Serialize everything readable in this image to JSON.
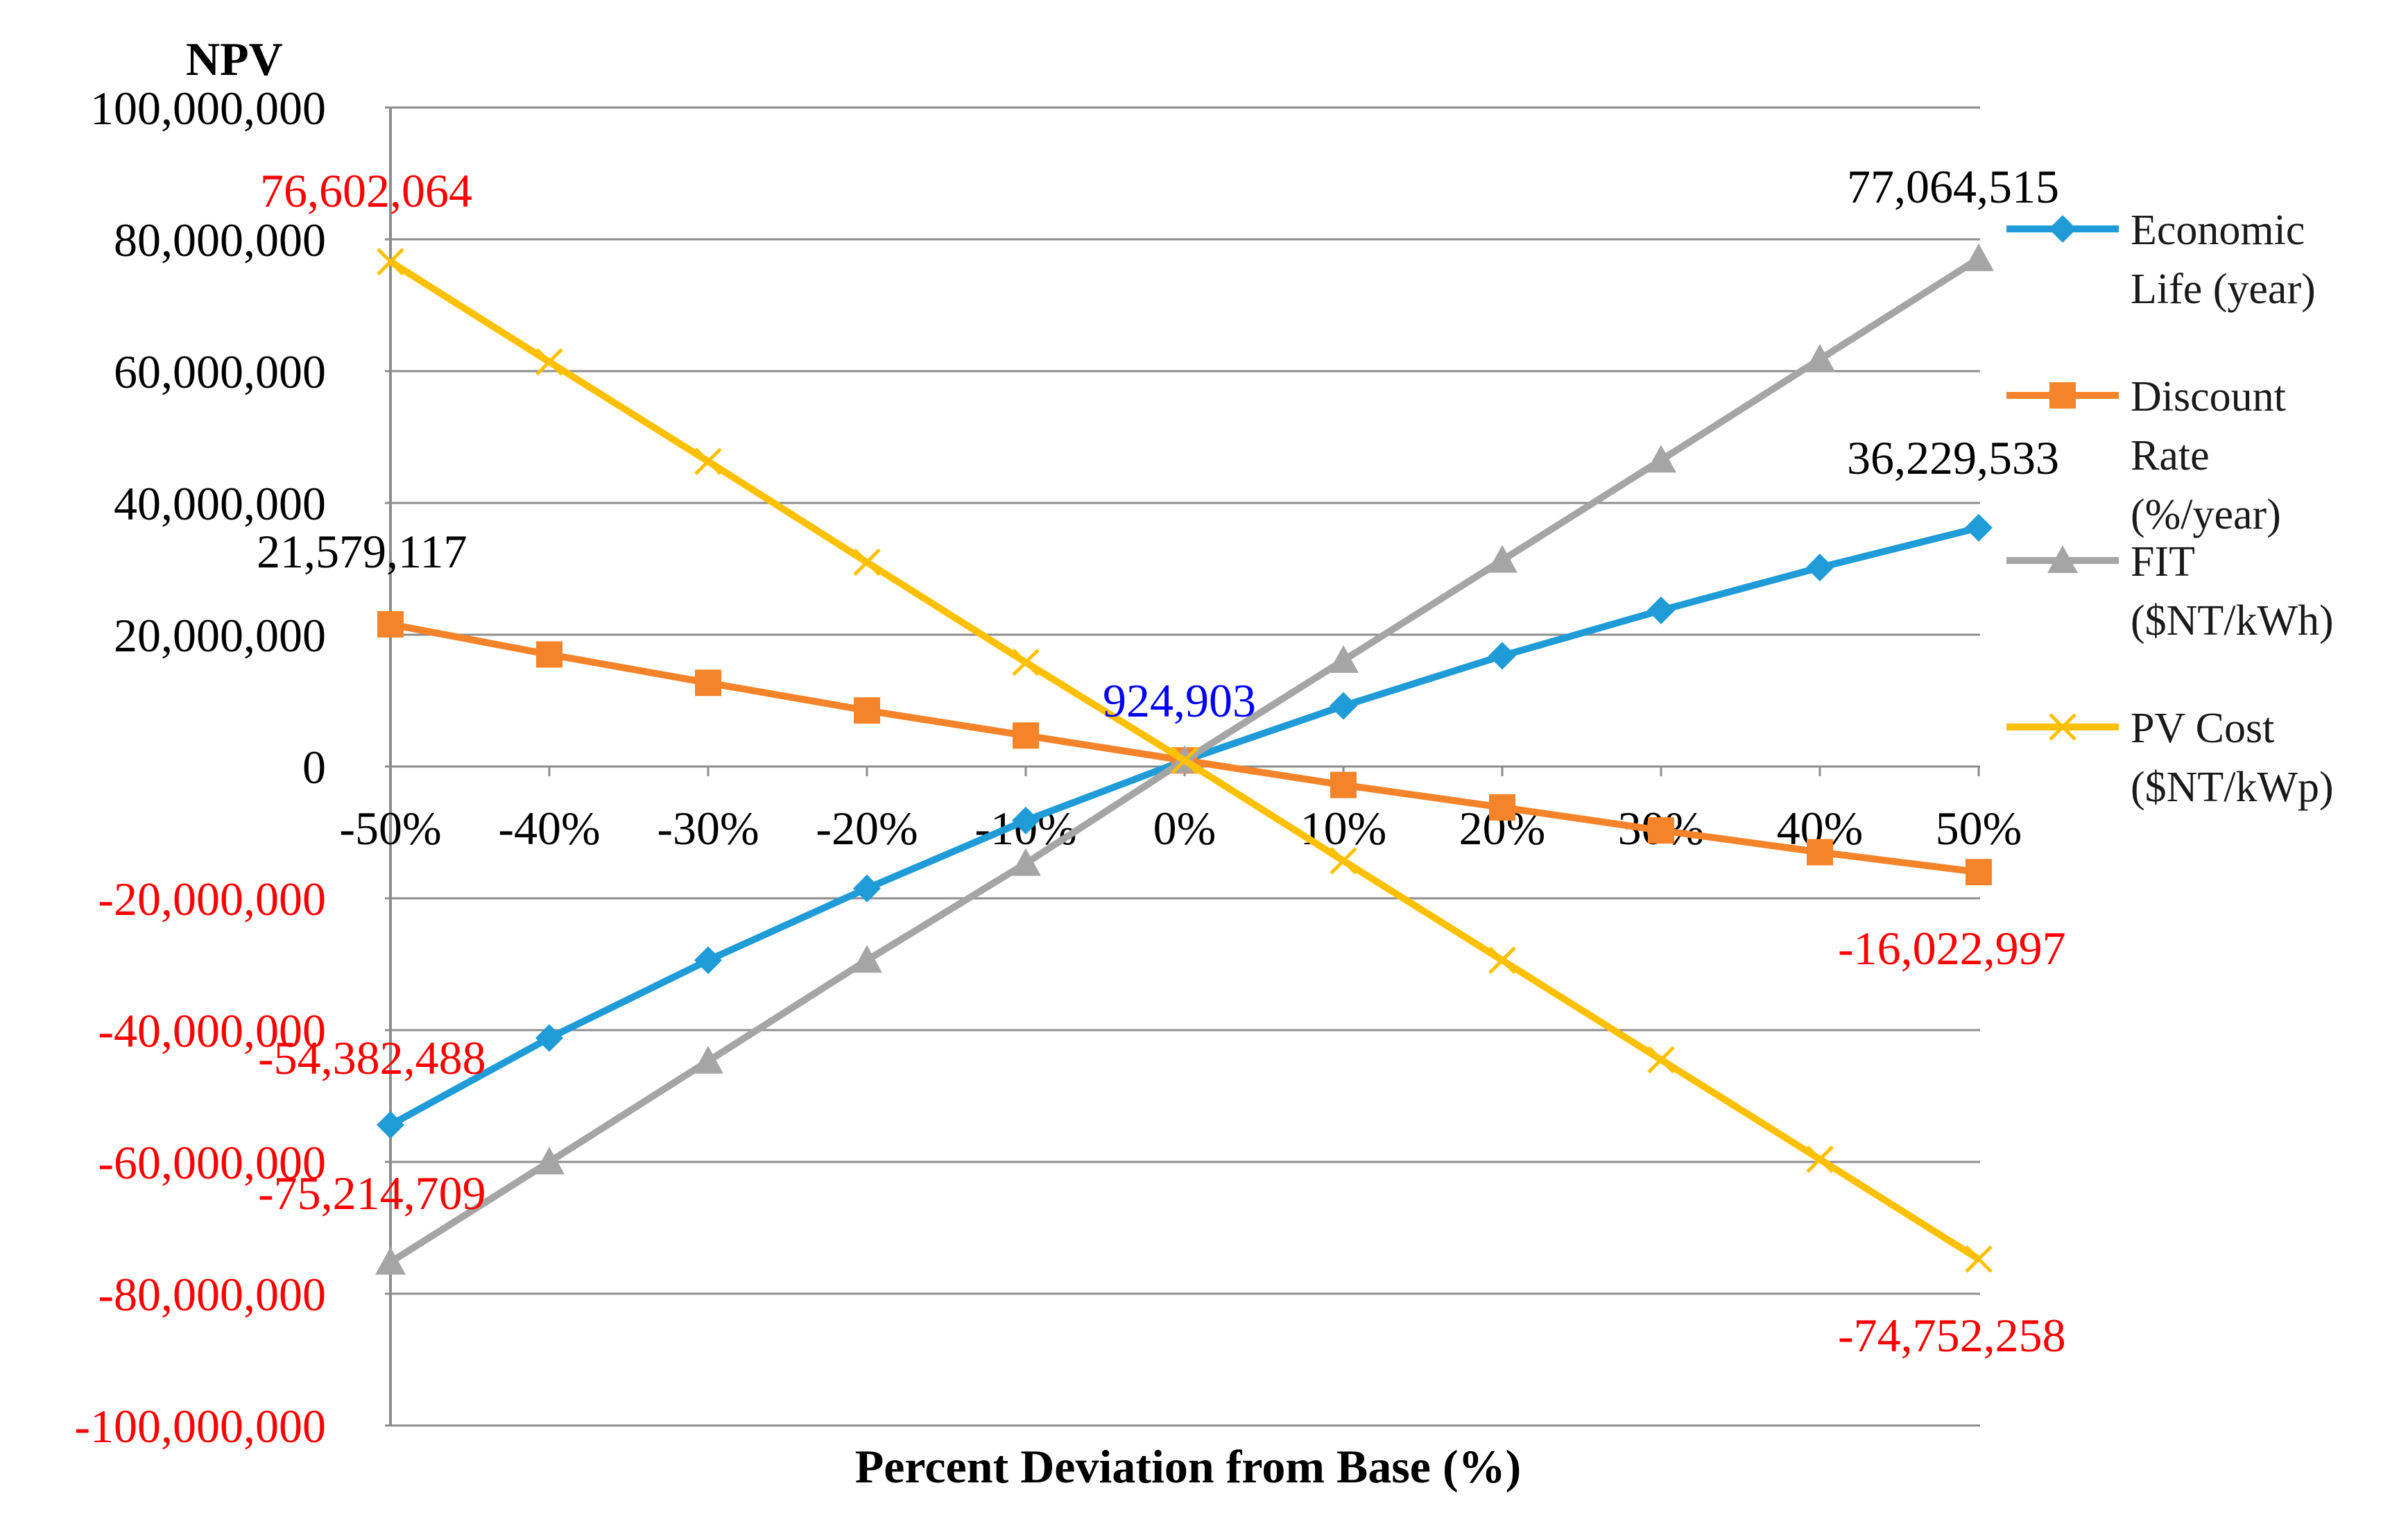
{
  "chart_data": {
    "type": "line",
    "title": "",
    "xlabel": "Percent Deviation from Base (%)",
    "ylabel": "NPV",
    "categories": [
      "-50%",
      "-40%",
      "-30%",
      "-20%",
      "-10%",
      "0%",
      "10%",
      "20%",
      "30%",
      "40%",
      "50%"
    ],
    "y_ticks": [
      {
        "value": 100000000,
        "label": "100,000,000",
        "color": "#000000"
      },
      {
        "value": 80000000,
        "label": "80,000,000",
        "color": "#000000"
      },
      {
        "value": 60000000,
        "label": "60,000,000",
        "color": "#000000"
      },
      {
        "value": 40000000,
        "label": "40,000,000",
        "color": "#000000"
      },
      {
        "value": 20000000,
        "label": "20,000,000",
        "color": "#000000"
      },
      {
        "value": 0,
        "label": "0",
        "color": "#000000"
      },
      {
        "value": -20000000,
        "label": "-20,000,000",
        "color": "#ff0000"
      },
      {
        "value": -40000000,
        "label": "-40,000,000",
        "color": "#ff0000"
      },
      {
        "value": -60000000,
        "label": "-60,000,000",
        "color": "#ff0000"
      },
      {
        "value": -80000000,
        "label": "-80,000,000",
        "color": "#ff0000"
      },
      {
        "value": -100000000,
        "label": "-100,000,000",
        "color": "#ff0000"
      }
    ],
    "ylim": [
      -100000000,
      100000000
    ],
    "grid": true,
    "legend_position": "right",
    "series": [
      {
        "name": "Economic Life (year)",
        "legend_lines": [
          "Economic",
          "Life (year)"
        ],
        "color": "#1f9bd7",
        "marker": "diamond",
        "values": [
          -54382488,
          -41200000,
          -29400000,
          -18500000,
          -8200000,
          924903,
          9200000,
          16800000,
          23700000,
          30200000,
          36229533
        ]
      },
      {
        "name": "Discount Rate (%/year)",
        "legend_lines": [
          "Discount",
          "Rate",
          "(%/year)"
        ],
        "color": "#f5832a",
        "marker": "square",
        "values": [
          21579117,
          17000000,
          12700000,
          8500000,
          4700000,
          924903,
          -2800000,
          -6200000,
          -9700000,
          -13000000,
          -16022997
        ]
      },
      {
        "name": "FIT ($NT/kWh)",
        "legend_lines": [
          "FIT",
          "($NT/kWh)"
        ],
        "color": "#a5a5a5",
        "marker": "triangle",
        "values": [
          -75214709,
          -60000000,
          -44700000,
          -29400000,
          -14700000,
          924903,
          16100000,
          31300000,
          46500000,
          61800000,
          77064515
        ]
      },
      {
        "name": "PV Cost ($NT/kWp)",
        "legend_lines": [
          "PV Cost",
          "($NT/kWp)"
        ],
        "color": "#ffc000",
        "marker": "x",
        "values": [
          76602064,
          61400000,
          46300000,
          31000000,
          15800000,
          924903,
          -14300000,
          -29400000,
          -44500000,
          -59600000,
          -74752258
        ]
      }
    ],
    "annotations": [
      {
        "text": "76,602,064",
        "color": "#ff0000"
      },
      {
        "text": "77,064,515",
        "color": "#000000"
      },
      {
        "text": "36,229,533",
        "color": "#000000"
      },
      {
        "text": "21,579,117",
        "color": "#000000"
      },
      {
        "text": "924,903",
        "color": "#0000ff"
      },
      {
        "text": "-16,022,997",
        "color": "#ff0000"
      },
      {
        "text": "-54,382,488",
        "color": "#ff0000"
      },
      {
        "text": "-75,214,709",
        "color": "#ff0000"
      },
      {
        "text": "-74,752,258",
        "color": "#ff0000"
      }
    ]
  }
}
